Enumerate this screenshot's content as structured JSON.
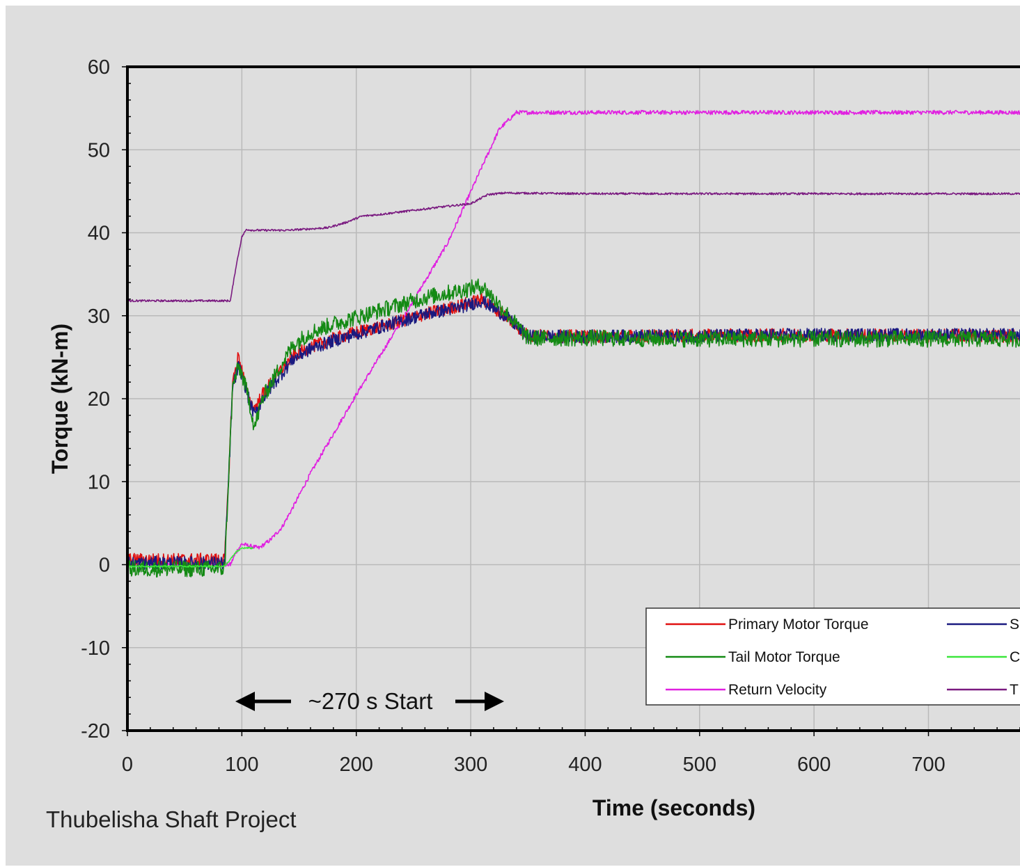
{
  "chart_data": {
    "type": "line",
    "title": "",
    "xlabel": "Time (seconds)",
    "ylabel": "Torque (kN-m)",
    "xlim": [
      0,
      780
    ],
    "ylim": [
      -20,
      60
    ],
    "x_ticks": [
      "0",
      "100",
      "200",
      "300",
      "400",
      "500",
      "600",
      "700"
    ],
    "y_ticks": [
      "60",
      "50",
      "40",
      "30",
      "20",
      "10",
      "0",
      "-10",
      "-20"
    ],
    "grid": true,
    "legend_position": "bottom-right",
    "annotation": "~270 s Start",
    "annotation_range": [
      97,
      327
    ],
    "footer": "Thubelisha Shaft Project",
    "series": [
      {
        "name": "Primary Motor Torque",
        "color": "#e01010",
        "noise": 0.8,
        "points": [
          [
            0,
            0.6
          ],
          [
            85,
            0.6
          ],
          [
            87,
            6
          ],
          [
            92,
            22
          ],
          [
            97,
            25.2
          ],
          [
            100,
            23.5
          ],
          [
            106,
            20
          ],
          [
            111,
            18.8
          ],
          [
            118,
            20.5
          ],
          [
            130,
            22.8
          ],
          [
            145,
            25.2
          ],
          [
            160,
            26.2
          ],
          [
            180,
            27.2
          ],
          [
            200,
            28
          ],
          [
            230,
            29
          ],
          [
            260,
            30.2
          ],
          [
            290,
            31.2
          ],
          [
            310,
            32
          ],
          [
            330,
            30
          ],
          [
            350,
            27.6
          ],
          [
            400,
            27.5
          ],
          [
            500,
            27.6
          ],
          [
            600,
            27.7
          ],
          [
            700,
            27.6
          ],
          [
            780,
            27.6
          ]
        ]
      },
      {
        "name": "S",
        "color": "#1a1a80",
        "noise": 0.8,
        "points": [
          [
            0,
            0.2
          ],
          [
            85,
            0.2
          ],
          [
            87,
            6
          ],
          [
            92,
            21.5
          ],
          [
            97,
            23.8
          ],
          [
            100,
            23
          ],
          [
            106,
            20
          ],
          [
            111,
            18
          ],
          [
            118,
            20
          ],
          [
            130,
            22.2
          ],
          [
            145,
            24.8
          ],
          [
            160,
            26
          ],
          [
            180,
            27
          ],
          [
            200,
            27.8
          ],
          [
            230,
            29
          ],
          [
            260,
            30.2
          ],
          [
            290,
            31
          ],
          [
            310,
            31.8
          ],
          [
            330,
            30
          ],
          [
            350,
            27.5
          ],
          [
            400,
            27.5
          ],
          [
            500,
            27.6
          ],
          [
            600,
            27.7
          ],
          [
            700,
            27.7
          ],
          [
            780,
            27.7
          ]
        ]
      },
      {
        "name": "Tail Motor Torque",
        "color": "#148a14",
        "noise": 1.0,
        "points": [
          [
            0,
            -0.5
          ],
          [
            85,
            -0.5
          ],
          [
            87,
            6
          ],
          [
            92,
            21.5
          ],
          [
            97,
            23.8
          ],
          [
            100,
            23
          ],
          [
            106,
            20
          ],
          [
            111,
            16.5
          ],
          [
            118,
            20
          ],
          [
            130,
            23
          ],
          [
            145,
            26.5
          ],
          [
            160,
            28
          ],
          [
            180,
            29
          ],
          [
            200,
            29.8
          ],
          [
            230,
            31
          ],
          [
            260,
            32.2
          ],
          [
            290,
            33
          ],
          [
            310,
            33.6
          ],
          [
            330,
            30.5
          ],
          [
            350,
            27.3
          ],
          [
            400,
            27.3
          ],
          [
            500,
            27.2
          ],
          [
            600,
            27.2
          ],
          [
            700,
            27.2
          ],
          [
            780,
            27.2
          ]
        ]
      },
      {
        "name": "C",
        "color": "#3ce63c",
        "noise": 0.1,
        "points": [
          [
            0,
            -0.2
          ],
          [
            85,
            -0.2
          ],
          [
            95,
            1.5
          ],
          [
            100,
            2
          ],
          [
            110,
            2
          ]
        ]
      },
      {
        "name": "Return Velocity",
        "color": "#e020e0",
        "noise": 0.25,
        "points": [
          [
            0,
            0
          ],
          [
            90,
            0
          ],
          [
            95,
            1.5
          ],
          [
            100,
            2.5
          ],
          [
            105,
            2.3
          ],
          [
            115,
            2
          ],
          [
            125,
            3
          ],
          [
            135,
            4.5
          ],
          [
            145,
            7
          ],
          [
            160,
            11
          ],
          [
            200,
            20.5
          ],
          [
            240,
            29.5
          ],
          [
            280,
            38.8
          ],
          [
            310,
            48
          ],
          [
            325,
            52.5
          ],
          [
            340,
            54.5
          ],
          [
            400,
            54.5
          ],
          [
            500,
            54.5
          ],
          [
            600,
            54.5
          ],
          [
            700,
            54.5
          ],
          [
            780,
            54.5
          ]
        ]
      },
      {
        "name": "T",
        "color": "#7a1a80",
        "noise": 0.12,
        "points": [
          [
            0,
            31.8
          ],
          [
            90,
            31.8
          ],
          [
            95,
            36
          ],
          [
            100,
            39.5
          ],
          [
            104,
            40.4
          ],
          [
            110,
            40.3
          ],
          [
            140,
            40.3
          ],
          [
            175,
            40.6
          ],
          [
            190,
            41.2
          ],
          [
            205,
            42
          ],
          [
            220,
            42.2
          ],
          [
            250,
            42.7
          ],
          [
            280,
            43.2
          ],
          [
            300,
            43.5
          ],
          [
            315,
            44.6
          ],
          [
            330,
            44.8
          ],
          [
            400,
            44.7
          ],
          [
            500,
            44.7
          ],
          [
            600,
            44.7
          ],
          [
            700,
            44.7
          ],
          [
            780,
            44.7
          ]
        ]
      }
    ],
    "legend_layout": [
      [
        "Primary Motor Torque",
        "S"
      ],
      [
        "Tail Motor Torque",
        "C"
      ],
      [
        "Return Velocity",
        "T"
      ]
    ]
  }
}
